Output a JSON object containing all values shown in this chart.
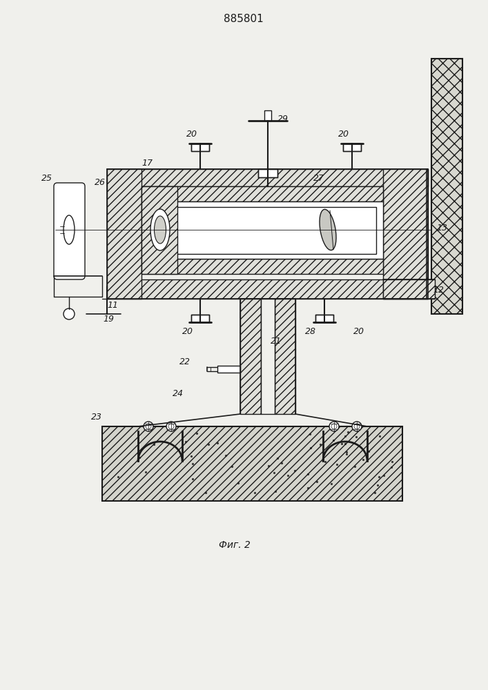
{
  "title": "885801",
  "caption": "Фиг. 2",
  "bg_color": "#f0f0ec",
  "lc": "#1a1a1a",
  "figsize": [
    7.07,
    10.0
  ],
  "dpi": 100
}
